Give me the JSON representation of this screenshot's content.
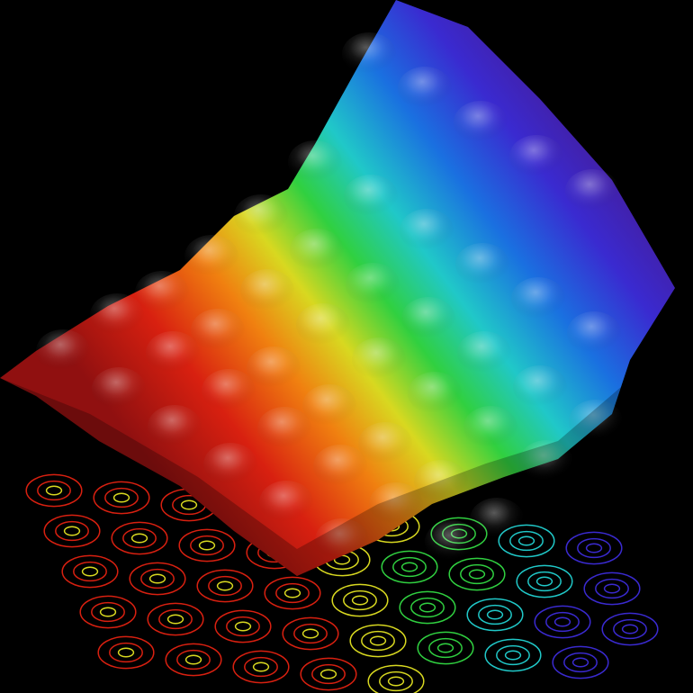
{
  "scene": {
    "background": "#000000",
    "palette": [
      "#4a1680",
      "#3a2ad0",
      "#1a70e0",
      "#20c8c8",
      "#30d040",
      "#d8d820",
      "#f08010",
      "#d82010",
      "#901010"
    ]
  }
}
